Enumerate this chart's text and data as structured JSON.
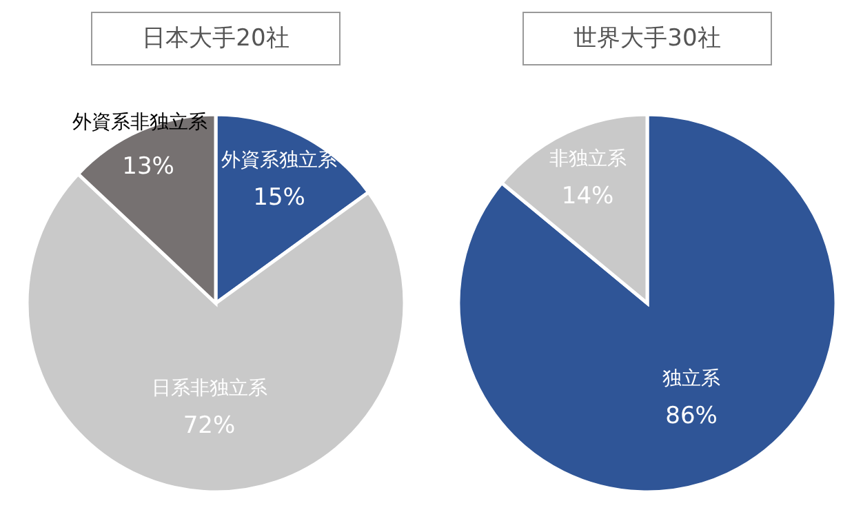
{
  "chart_data": [
    {
      "type": "pie",
      "title": "日本大手20社",
      "categories": [
        "外資系独立系",
        "日系非独立系",
        "外資系非独立系"
      ],
      "values": [
        15,
        72,
        13
      ],
      "colors": [
        "#2f5597",
        "#c9c9c9",
        "#767171"
      ],
      "value_labels": [
        "15%",
        "72%",
        "13%"
      ]
    },
    {
      "type": "pie",
      "title": "世界大手30社",
      "categories": [
        "独立系",
        "非独立系"
      ],
      "values": [
        86,
        14
      ],
      "colors": [
        "#2f5597",
        "#c9c9c9"
      ],
      "value_labels": [
        "86%",
        "14%"
      ]
    }
  ]
}
